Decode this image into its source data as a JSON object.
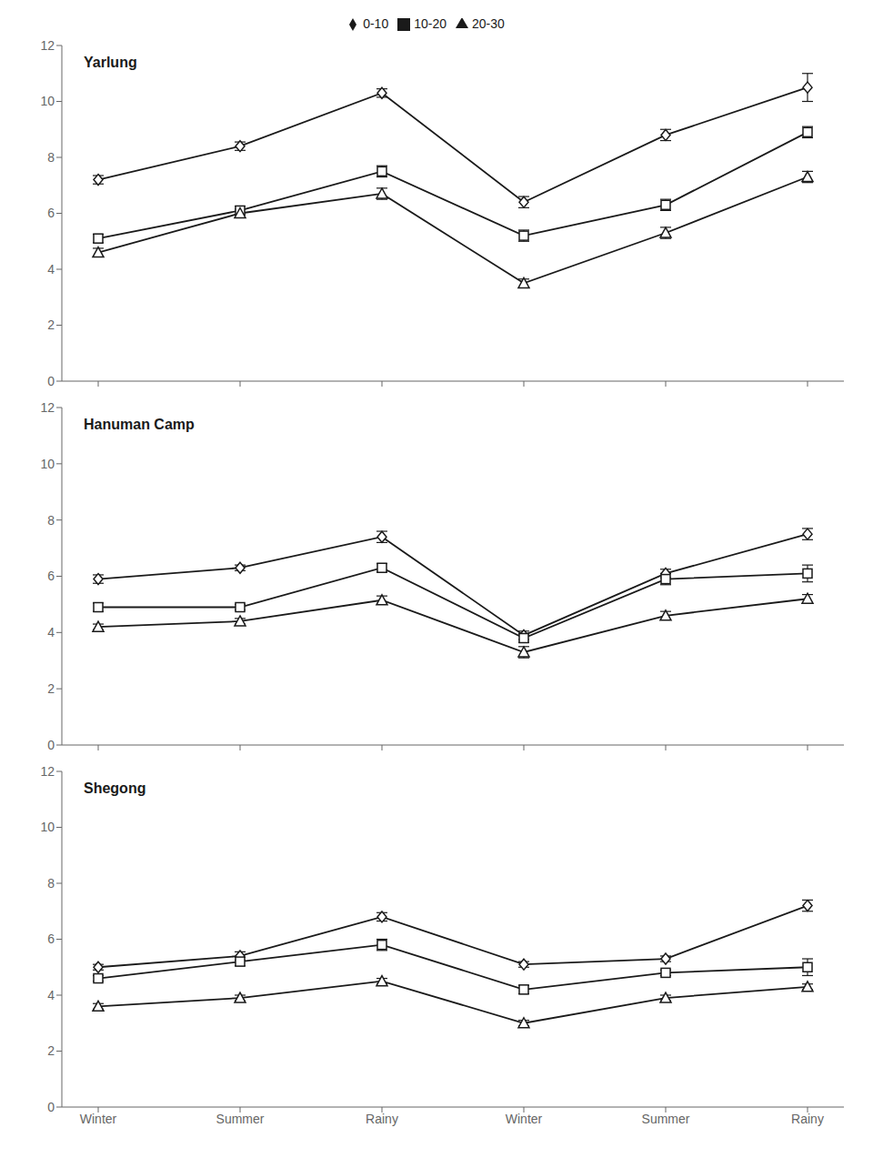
{
  "chart_data": [
    {
      "type": "line",
      "title": "Yarlung",
      "categories": [
        null,
        null,
        null,
        null,
        null,
        null
      ],
      "series": [
        {
          "name": "0-10",
          "marker": "diamond",
          "values": [
            7.2,
            8.4,
            10.3,
            6.4,
            8.8,
            10.5
          ],
          "errors": [
            0.15,
            0.15,
            0.15,
            0.2,
            0.2,
            0.5
          ]
        },
        {
          "name": "10-20",
          "marker": "square",
          "values": [
            5.1,
            6.1,
            7.5,
            5.2,
            6.3,
            8.9
          ],
          "errors": [
            0.15,
            0.15,
            0.2,
            0.2,
            0.2,
            0.2
          ]
        },
        {
          "name": "20-30",
          "marker": "triangle",
          "values": [
            4.6,
            6.0,
            6.7,
            3.5,
            5.3,
            7.3
          ],
          "errors": [
            0.15,
            0.15,
            0.2,
            0.15,
            0.2,
            0.2
          ]
        }
      ],
      "color": "#1a1a1a",
      "ylim": [
        0,
        12
      ],
      "yticks": [
        0,
        2,
        4,
        6,
        8,
        10,
        12
      ],
      "grid": false,
      "legend": "top"
    },
    {
      "type": "line",
      "title": "Hanuman Camp",
      "categories": [
        null,
        null,
        null,
        null,
        null,
        null
      ],
      "series": [
        {
          "name": "0-10",
          "marker": "diamond",
          "values": [
            5.9,
            6.3,
            7.4,
            3.9,
            6.1,
            7.5
          ],
          "errors": [
            0.15,
            0.1,
            0.2,
            0.15,
            0.15,
            0.2
          ]
        },
        {
          "name": "10-20",
          "marker": "square",
          "values": [
            4.9,
            4.9,
            6.3,
            3.8,
            5.9,
            6.1
          ],
          "errors": [
            0.15,
            0.1,
            0.15,
            0.15,
            0.2,
            0.3
          ]
        },
        {
          "name": "20-30",
          "marker": "triangle",
          "values": [
            4.2,
            4.4,
            5.15,
            3.3,
            4.6,
            5.2
          ],
          "errors": [
            0.1,
            0.1,
            0.15,
            0.2,
            0.15,
            0.15
          ]
        }
      ],
      "color": "#1a1a1a",
      "ylim": [
        0,
        12
      ],
      "yticks": [
        0,
        2,
        4,
        6,
        8,
        10,
        12
      ],
      "grid": false
    },
    {
      "type": "line",
      "title": "Shegong",
      "categories": [
        "Winter",
        "Summer",
        "Rainy",
        "Winter",
        "Summer",
        "Rainy"
      ],
      "series": [
        {
          "name": "0-10",
          "marker": "diamond",
          "values": [
            5.0,
            5.4,
            6.8,
            5.1,
            5.3,
            7.2
          ],
          "errors": [
            0.1,
            0.15,
            0.15,
            0.1,
            0.1,
            0.2
          ]
        },
        {
          "name": "10-20",
          "marker": "square",
          "values": [
            4.6,
            5.2,
            5.8,
            4.2,
            4.8,
            5.0
          ],
          "errors": [
            0.1,
            0.15,
            0.2,
            0.15,
            0.1,
            0.3
          ]
        },
        {
          "name": "20-30",
          "marker": "triangle",
          "values": [
            3.6,
            3.9,
            4.5,
            3.0,
            3.9,
            4.3
          ],
          "errors": [
            0.1,
            0.1,
            0.1,
            0.1,
            0.1,
            0.1
          ]
        }
      ],
      "color": "#1a1a1a",
      "ylim": [
        0,
        12
      ],
      "yticks": [
        0,
        2,
        4,
        6,
        8,
        10,
        12
      ],
      "grid": false
    }
  ]
}
